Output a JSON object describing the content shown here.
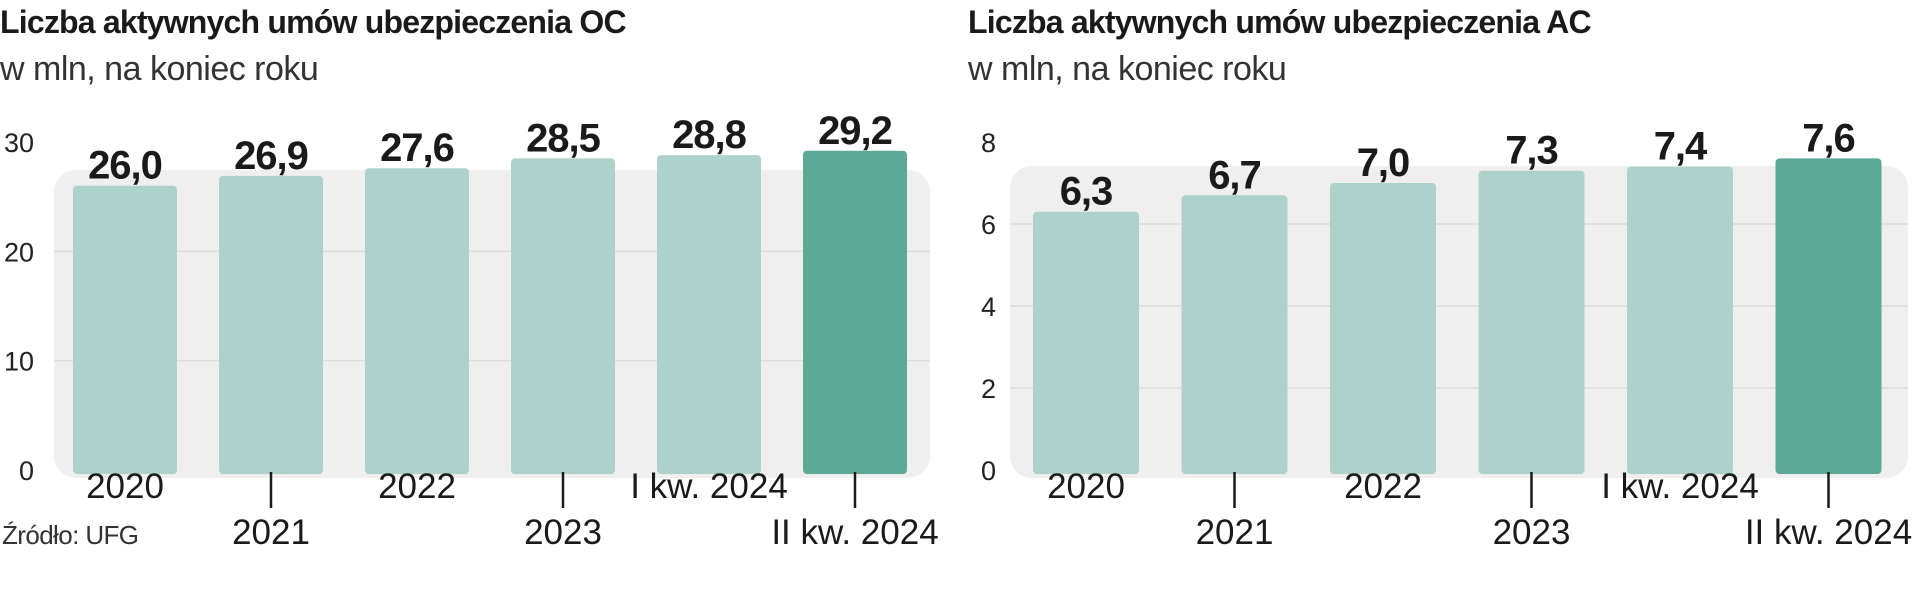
{
  "source_label": "Źródło: UFG",
  "chart_data": [
    {
      "type": "bar",
      "title": "Liczba aktywnych umów ubezpieczenia OC",
      "subtitle": "w mln, na koniec roku",
      "categories": [
        "2020",
        "2021",
        "2022",
        "2023",
        "I kw. 2024",
        "II kw. 2024"
      ],
      "values": [
        26.0,
        26.9,
        27.6,
        28.5,
        28.8,
        29.2
      ],
      "value_labels": [
        "26,0",
        "26,9",
        "27,6",
        "28,5",
        "28,8",
        "29,2"
      ],
      "ylim": [
        0,
        30
      ],
      "yticks": [
        0,
        10,
        20,
        30
      ],
      "grid": true,
      "legend": "none",
      "colors": {
        "bar": "#aed2cb",
        "highlight": "#5ea898",
        "plot_bg": "#efefef"
      },
      "highlight_index": 5
    },
    {
      "type": "bar",
      "title": "Liczba aktywnych umów ubezpieczenia AC",
      "subtitle": "w mln, na koniec roku",
      "categories": [
        "2020",
        "2021",
        "2022",
        "2023",
        "I kw. 2024",
        "II kw. 2024"
      ],
      "values": [
        6.3,
        6.7,
        7.0,
        7.3,
        7.4,
        7.6
      ],
      "value_labels": [
        "6,3",
        "6,7",
        "7,0",
        "7,3",
        "7,4",
        "7,6"
      ],
      "ylim": [
        0,
        8
      ],
      "yticks": [
        0,
        2,
        4,
        6,
        8
      ],
      "grid": true,
      "legend": "none",
      "colors": {
        "bar": "#aed2cb",
        "highlight": "#5ea898",
        "plot_bg": "#efefef"
      },
      "highlight_index": 5
    }
  ]
}
